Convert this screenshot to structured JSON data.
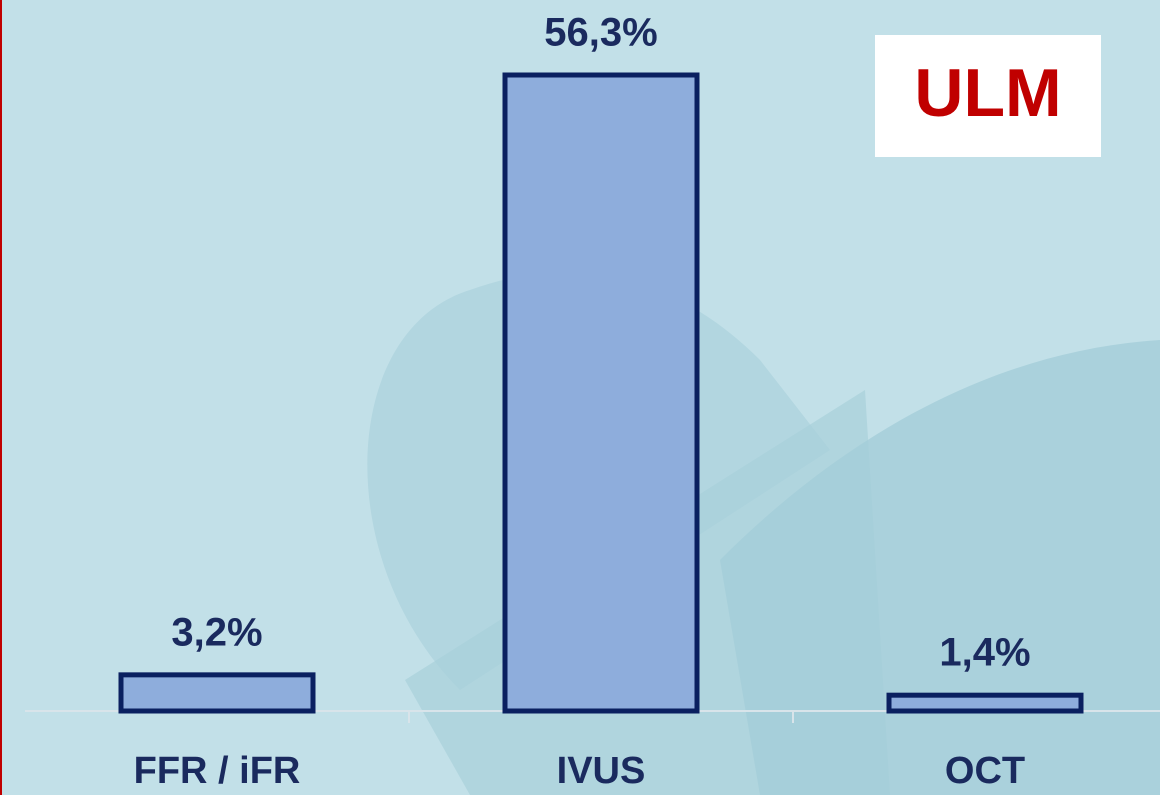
{
  "chart_data": {
    "type": "bar",
    "categories": [
      "FFR / iFR",
      "IVUS",
      "OCT"
    ],
    "values": [
      3.2,
      56.3,
      1.4
    ],
    "value_labels": [
      "3,2%",
      "56,3%",
      "1,4%"
    ],
    "color": "#8eaddc",
    "annotation": "ULM"
  }
}
